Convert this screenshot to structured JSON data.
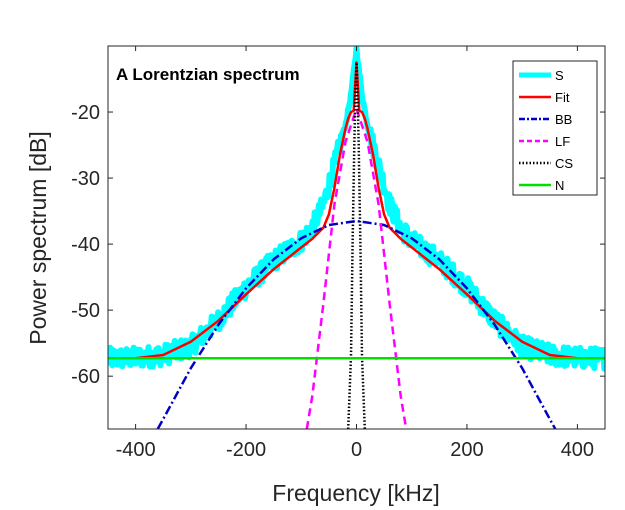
{
  "chart_data": {
    "type": "line",
    "title": "A Lorentzian spectrum",
    "xlabel": "Frequency [kHz]",
    "ylabel": "Power spectrum [dB]",
    "xlim": [
      -450,
      450
    ],
    "ylim": [
      -68,
      -10
    ],
    "xticks": [
      -400,
      -200,
      0,
      200,
      400
    ],
    "yticks": [
      -60,
      -50,
      -40,
      -30,
      -20
    ],
    "xtick_labels": [
      "-400",
      "-200",
      "0",
      "200",
      "400"
    ],
    "ytick_labels": [
      "-60",
      "-50",
      "-40",
      "-30",
      "-20"
    ],
    "grid": false,
    "legend_position": "top-right",
    "series": [
      {
        "name": "S",
        "color": "#00ffff",
        "style": "solid-thick-noisy",
        "x": [
          -450,
          -400,
          -350,
          -300,
          -250,
          -200,
          -150,
          -100,
          -80,
          -60,
          -40,
          -20,
          -10,
          -5,
          0,
          5,
          10,
          20,
          40,
          60,
          80,
          100,
          150,
          200,
          250,
          300,
          350,
          400,
          450
        ],
        "y": [
          -57.3,
          -57.2,
          -56.8,
          -55.5,
          -51.5,
          -46.5,
          -42.5,
          -39.5,
          -37.5,
          -34,
          -28,
          -22,
          -17.5,
          -14,
          -10.5,
          -14,
          -17.5,
          -22,
          -28,
          -34,
          -37.5,
          -39.5,
          -42.5,
          -46.5,
          -51.5,
          -55.5,
          -56.8,
          -57.2,
          -57.3
        ]
      },
      {
        "name": "Fit",
        "color": "#ff0000",
        "style": "solid",
        "x": [
          -450,
          -400,
          -350,
          -300,
          -250,
          -200,
          -150,
          -100,
          -80,
          -60,
          -50,
          -40,
          -30,
          -20,
          -15,
          -10,
          -5,
          0,
          5,
          10,
          15,
          20,
          30,
          40,
          50,
          60,
          80,
          100,
          150,
          200,
          250,
          300,
          350,
          400,
          450
        ],
        "y": [
          -57.3,
          -57.3,
          -56.8,
          -54.8,
          -51.6,
          -47.6,
          -43.8,
          -40.5,
          -39.2,
          -37.5,
          -35.5,
          -31.5,
          -26.5,
          -22.5,
          -21,
          -20,
          -19.8,
          -12.5,
          -19.8,
          -20,
          -21,
          -22.5,
          -26.5,
          -31.5,
          -35.5,
          -37.5,
          -39.2,
          -40.5,
          -43.8,
          -47.6,
          -51.6,
          -54.8,
          -56.8,
          -57.3,
          -57.3
        ]
      },
      {
        "name": "BB",
        "color": "#0000c8",
        "style": "dash-dot",
        "x": [
          -360,
          -350,
          -300,
          -250,
          -200,
          -150,
          -100,
          -50,
          0,
          50,
          100,
          150,
          200,
          250,
          300,
          350,
          360
        ],
        "y": [
          -68,
          -66.5,
          -58.8,
          -52.2,
          -46.7,
          -42.3,
          -39.1,
          -37.1,
          -36.5,
          -37.1,
          -39.1,
          -42.3,
          -46.7,
          -52.2,
          -58.8,
          -66.5,
          -68
        ]
      },
      {
        "name": "LF",
        "color": "#ff00ff",
        "style": "dashed",
        "x": [
          -90,
          -80,
          -60,
          -40,
          -20,
          0,
          20,
          40,
          60,
          80,
          90
        ],
        "y": [
          -68,
          -63,
          -49,
          -34,
          -24.5,
          -19.5,
          -24.5,
          -34,
          -49,
          -63,
          -68
        ]
      },
      {
        "name": "CS",
        "color": "#000000",
        "style": "dotted",
        "x": [
          -15,
          -10,
          -7,
          -4,
          -2,
          0,
          2,
          4,
          7,
          10,
          15
        ],
        "y": [
          -68,
          -57,
          -40,
          -25,
          -17.5,
          -12.5,
          -17.5,
          -25,
          -40,
          -57,
          -68
        ]
      },
      {
        "name": "N",
        "color": "#00e000",
        "style": "solid",
        "x": [
          -450,
          450
        ],
        "y": [
          -57.3,
          -57.3
        ]
      }
    ]
  }
}
